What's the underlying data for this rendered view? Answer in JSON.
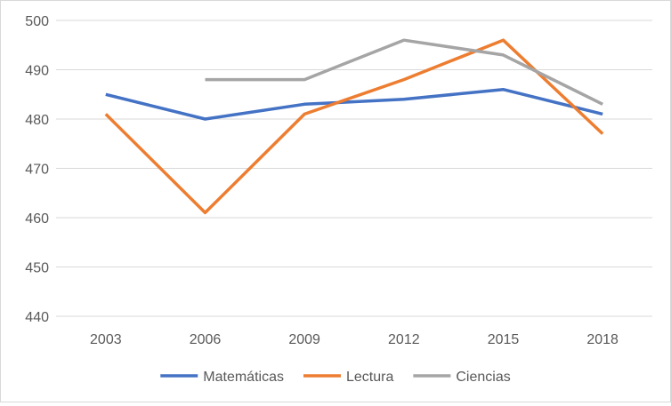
{
  "chart_data": {
    "type": "line",
    "categories": [
      "2003",
      "2006",
      "2009",
      "2012",
      "2015",
      "2018"
    ],
    "ylim": [
      440,
      500
    ],
    "yticks": [
      440,
      450,
      460,
      470,
      480,
      490,
      500
    ],
    "grid": true,
    "legend_position": "bottom",
    "series": [
      {
        "name": "Matemáticas",
        "color": "#4472c4",
        "values": [
          485,
          480,
          483,
          484,
          486,
          481
        ]
      },
      {
        "name": "Lectura",
        "color": "#ed7d31",
        "values": [
          481,
          461,
          481,
          488,
          496,
          477
        ]
      },
      {
        "name": "Ciencias",
        "color": "#a5a5a5",
        "values": [
          null,
          488,
          488,
          496,
          493,
          483
        ]
      }
    ]
  }
}
